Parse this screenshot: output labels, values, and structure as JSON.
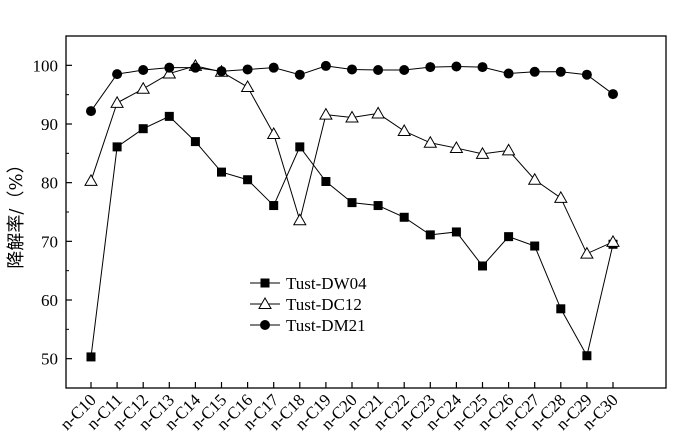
{
  "chart_data": {
    "type": "line",
    "title": "",
    "xlabel": "",
    "ylabel": "降解率/（%）",
    "categories": [
      "n-C10",
      "n-C11",
      "n-C12",
      "n-C13",
      "n-C14",
      "n-C15",
      "n-C16",
      "n-C17",
      "n-C18",
      "n-C19",
      "n-C20",
      "n-C21",
      "n-C22",
      "n-C23",
      "n-C24",
      "n-C25",
      "n-C26",
      "n-C27",
      "n-C28",
      "n-C29",
      "n-C30"
    ],
    "ylim": [
      45,
      105
    ],
    "yticks": [
      50,
      60,
      70,
      80,
      90,
      100
    ],
    "grid": false,
    "legend_position": "center-left",
    "series": [
      {
        "name": "Tust-DW04",
        "marker": "filled-square",
        "color": "#000000",
        "values": [
          50.3,
          86.1,
          89.2,
          91.3,
          87.0,
          81.8,
          80.5,
          76.1,
          86.1,
          80.2,
          76.6,
          76.1,
          74.1,
          71.1,
          71.6,
          65.8,
          70.8,
          69.2,
          58.5,
          50.5,
          69.5
        ]
      },
      {
        "name": "Tust-DC12",
        "marker": "open-triangle",
        "color": "#000000",
        "values": [
          80.3,
          93.6,
          96.0,
          98.6,
          99.9,
          98.9,
          96.3,
          88.3,
          73.6,
          91.6,
          91.1,
          91.8,
          88.8,
          86.8,
          85.9,
          84.9,
          85.5,
          80.5,
          77.4,
          67.9,
          69.9
        ]
      },
      {
        "name": "Tust-DM21",
        "marker": "filled-circle",
        "color": "#000000",
        "values": [
          92.2,
          98.5,
          99.2,
          99.6,
          99.6,
          99.0,
          99.3,
          99.6,
          98.4,
          99.9,
          99.3,
          99.2,
          99.2,
          99.7,
          99.8,
          99.7,
          98.6,
          98.9,
          98.9,
          98.4,
          95.1
        ]
      }
    ]
  }
}
